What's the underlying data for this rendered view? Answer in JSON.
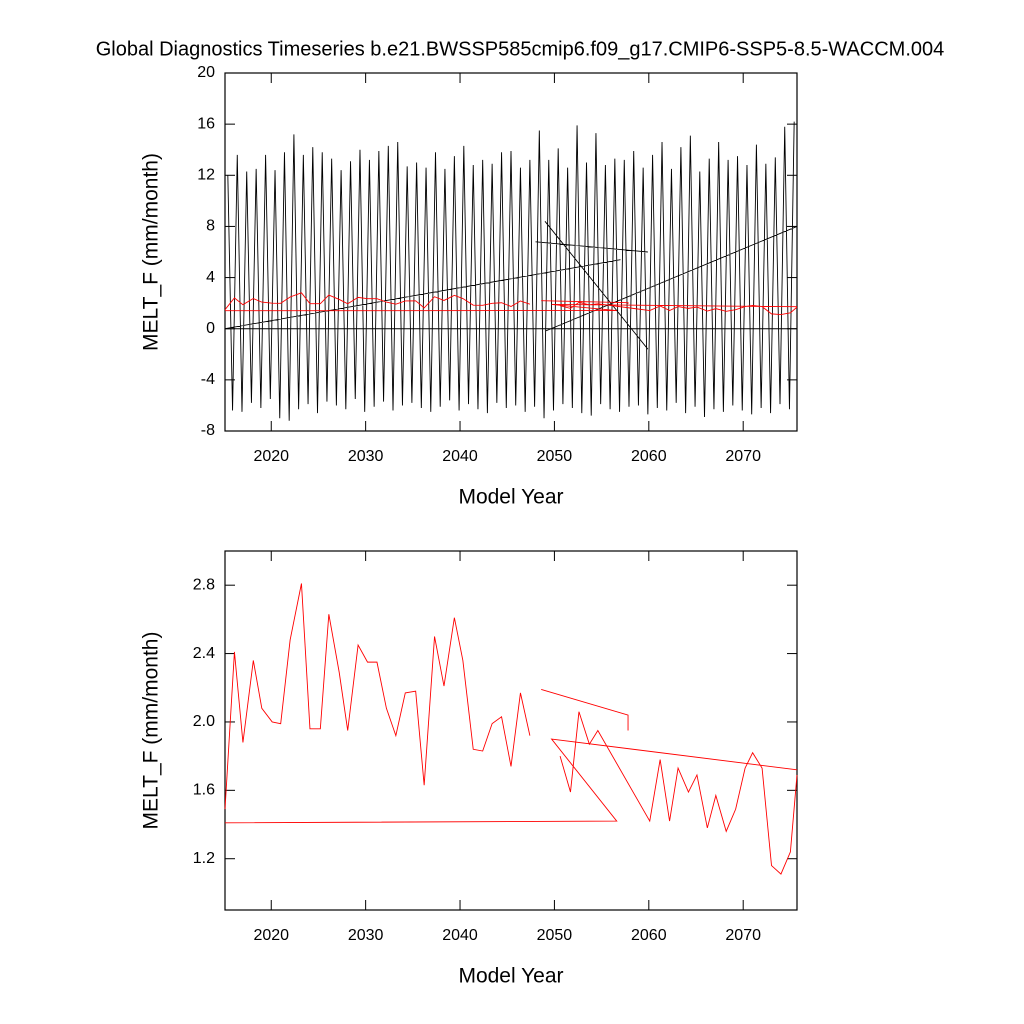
{
  "chart_data": [
    {
      "type": "line",
      "title": "Global Diagnostics Timeseries b.e21.BWSSP585cmip6.f09_g17.CMIP6-SSP5-8.5-WACCM.004",
      "xlabel": "Model Year",
      "ylabel": "MELT_F (mm/month)",
      "xlim": [
        2015.1,
        2075.7
      ],
      "xticks": [
        2020,
        2030,
        2040,
        2050,
        2060,
        2070
      ],
      "ylim": [
        -8,
        20
      ],
      "yticks": [
        -8,
        -4,
        0,
        4,
        8,
        12,
        16,
        20
      ],
      "reference_line": 0,
      "series": [
        {
          "color": "#000000",
          "x": [
            2015.4,
            2015.9,
            2016.4,
            2016.9,
            2017.4,
            2017.9,
            2018.4,
            2018.9,
            2019.4,
            2019.9,
            2020.4,
            2020.9,
            2021.4,
            2021.9,
            2022.4,
            2022.9,
            2023.4,
            2023.9,
            2024.4,
            2024.9,
            2025.4,
            2025.9,
            2026.4,
            2026.9,
            2027.4,
            2027.9,
            2028.4,
            2028.9,
            2029.4,
            2029.9,
            2030.4,
            2030.9,
            2031.4,
            2031.9,
            2032.4,
            2032.9,
            2033.4,
            2033.9,
            2034.4,
            2034.9,
            2035.4,
            2035.9,
            2036.4,
            2036.9,
            2037.4,
            2037.9,
            2038.4,
            2038.9,
            2039.4,
            2039.9,
            2040.4,
            2040.9,
            2041.4,
            2041.9,
            2042.4,
            2042.9,
            2043.4,
            2043.9,
            2044.4,
            2044.9,
            2045.4,
            2045.9,
            2046.4,
            2046.9,
            2047.4,
            2047.9,
            2048.4,
            2048.9,
            2049.4,
            2049.9,
            2050.4,
            2050.9,
            2051.4,
            2051.9,
            2052.4,
            2052.9,
            2053.4,
            2053.9,
            2054.4,
            2054.9,
            2055.4,
            2055.9,
            2056.4,
            2056.9,
            2057.4,
            2057.9,
            2058.4,
            2058.9,
            2059.4,
            2059.9,
            2060.4,
            2060.9,
            2061.4,
            2061.9,
            2062.4,
            2062.9,
            2063.4,
            2063.9,
            2064.4,
            2064.9,
            2065.4,
            2065.9,
            2066.4,
            2066.9,
            2067.4,
            2067.9,
            2068.4,
            2068.9,
            2069.4,
            2069.9,
            2070.4,
            2070.9,
            2071.4,
            2071.9,
            2072.4,
            2072.9,
            2073.4,
            2073.9,
            2074.4,
            2074.9,
            2075.4,
            null,
            2015.1,
            2057,
            null,
            2048,
            2059.9,
            null,
            2049,
            2059.9,
            null,
            2049,
            2075.7
          ],
          "values": [
            12,
            -6.4,
            13.6,
            -6.5,
            12.3,
            -5.8,
            12.5,
            -6.2,
            13.6,
            -5.5,
            12.4,
            -7,
            13.8,
            -7.2,
            15.2,
            -6.3,
            13.6,
            -5.9,
            14.2,
            -6.6,
            13.8,
            -5.7,
            13.3,
            -6,
            12.4,
            -6.3,
            13.1,
            -5.5,
            14,
            -6.5,
            13.2,
            -6.1,
            13.9,
            -5.7,
            14.3,
            -6.4,
            14.6,
            -6,
            12.7,
            -5.8,
            13,
            -6.2,
            12.6,
            -6.5,
            13.8,
            -6.1,
            12.5,
            -5.6,
            13.5,
            -6.4,
            14.3,
            -5.9,
            12.8,
            -6.3,
            13.2,
            -6.6,
            12.9,
            -5.8,
            13.8,
            -6.2,
            13.9,
            -6,
            12.6,
            -6.5,
            13.2,
            -6.1,
            15.5,
            -7,
            13.2,
            -6.4,
            14.1,
            -5.9,
            12.6,
            -6.2,
            15.9,
            -6.6,
            13,
            -6.8,
            15.3,
            -5.9,
            12.8,
            -6.3,
            13.3,
            -6.5,
            13.2,
            -6.1,
            13.9,
            -6,
            12.6,
            -6.7,
            13.6,
            -6.2,
            14.6,
            -6.4,
            12.5,
            -5.8,
            14.2,
            -6.6,
            15.1,
            -6.1,
            12.3,
            -6.9,
            13.3,
            -6.3,
            14.6,
            -6.5,
            13.2,
            -6,
            13.5,
            -6.4,
            12.8,
            -6.7,
            14.4,
            -6.2,
            12.9,
            -6.6,
            13.4,
            -5.9,
            15.8,
            -6.3,
            16.2,
            null,
            0,
            5.4,
            null,
            6.8,
            6.0,
            null,
            8.4,
            -1.6,
            null,
            -0.2,
            8
          ]
        },
        {
          "color": "#ff0000",
          "x": [
            2015.1,
            2016.1,
            2017,
            2018.1,
            2019,
            2020.1,
            2021,
            2022,
            2023.2,
            2024.1,
            2025.2,
            2026.1,
            2027.2,
            2028.1,
            2029.2,
            2030.2,
            2031.2,
            2032.2,
            2033.2,
            2034.2,
            2035.3,
            2036.2,
            2037.3,
            2038.3,
            2039.4,
            2040.3,
            2041.4,
            2042.4,
            2043.4,
            2044.4,
            2045.4,
            2046.4,
            2047.4,
            null,
            2048.6,
            2057.8,
            2057.8,
            null,
            2015.1,
            2056.6,
            2049.7,
            2075.7,
            null,
            2050.6,
            2051.7,
            2052.6,
            2053.7,
            2054.6,
            2060.1,
            2061.2,
            2062.2,
            2063.1,
            2064.2,
            2065.1,
            2066.2,
            2067.1,
            2068.2,
            2069.2,
            2070.2,
            2071,
            2072,
            2073,
            2074,
            2075,
            2075.7
          ],
          "values": [
            1.49,
            2.41,
            1.88,
            2.36,
            2.08,
            2.0,
            1.99,
            2.48,
            2.81,
            1.96,
            1.96,
            2.63,
            2.29,
            1.95,
            2.45,
            2.35,
            2.35,
            2.08,
            1.92,
            2.17,
            2.18,
            1.63,
            2.5,
            2.21,
            2.61,
            2.36,
            1.84,
            1.83,
            1.99,
            2.03,
            1.74,
            2.17,
            1.92,
            null,
            2.19,
            2.04,
            1.95,
            null,
            1.41,
            1.42,
            1.9,
            1.72,
            null,
            1.8,
            1.59,
            2.06,
            1.87,
            1.95,
            1.42,
            1.78,
            1.42,
            1.73,
            1.59,
            1.69,
            1.38,
            1.57,
            1.36,
            1.49,
            1.73,
            1.82,
            1.73,
            1.16,
            1.11,
            1.24,
            1.69
          ]
        }
      ]
    },
    {
      "type": "line",
      "xlabel": "Model Year",
      "ylabel": "MELT_F (mm/month)",
      "xlim": [
        2015.1,
        2075.7
      ],
      "xticks": [
        2020,
        2030,
        2040,
        2050,
        2060,
        2070
      ],
      "ylim": [
        0.9,
        3.0
      ],
      "yticks": [
        1.2,
        1.6,
        {
          "value": 2,
          "label": "2.0"
        },
        2.4,
        2.8
      ],
      "series": [
        {
          "color": "#ff0000",
          "x": [
            2015.1,
            2016.1,
            2017,
            2018.1,
            2019,
            2020.1,
            2021,
            2022,
            2023.2,
            2024.1,
            2025.2,
            2026.1,
            2027.2,
            2028.1,
            2029.2,
            2030.2,
            2031.2,
            2032.2,
            2033.2,
            2034.2,
            2035.3,
            2036.2,
            2037.3,
            2038.3,
            2039.4,
            2040.3,
            2041.4,
            2042.4,
            2043.4,
            2044.4,
            2045.4,
            2046.4,
            2047.4,
            null,
            2048.6,
            2057.8,
            2057.8,
            null,
            2015.1,
            2056.6,
            2049.7,
            2075.7,
            null,
            2050.6,
            2051.7,
            2052.6,
            2053.7,
            2054.6,
            2060.1,
            2061.2,
            2062.2,
            2063.1,
            2064.2,
            2065.1,
            2066.2,
            2067.1,
            2068.2,
            2069.2,
            2070.2,
            2071,
            2072,
            2073,
            2074,
            2075,
            2075.7
          ],
          "values": [
            1.49,
            2.41,
            1.88,
            2.36,
            2.08,
            2.0,
            1.99,
            2.48,
            2.81,
            1.96,
            1.96,
            2.63,
            2.29,
            1.95,
            2.45,
            2.35,
            2.35,
            2.08,
            1.92,
            2.17,
            2.18,
            1.63,
            2.5,
            2.21,
            2.61,
            2.36,
            1.84,
            1.83,
            1.99,
            2.03,
            1.74,
            2.17,
            1.92,
            null,
            2.19,
            2.04,
            1.95,
            null,
            1.41,
            1.42,
            1.9,
            1.72,
            null,
            1.8,
            1.59,
            2.06,
            1.87,
            1.95,
            1.42,
            1.78,
            1.42,
            1.73,
            1.59,
            1.69,
            1.38,
            1.57,
            1.36,
            1.49,
            1.73,
            1.82,
            1.73,
            1.16,
            1.11,
            1.24,
            1.69
          ]
        }
      ]
    }
  ]
}
